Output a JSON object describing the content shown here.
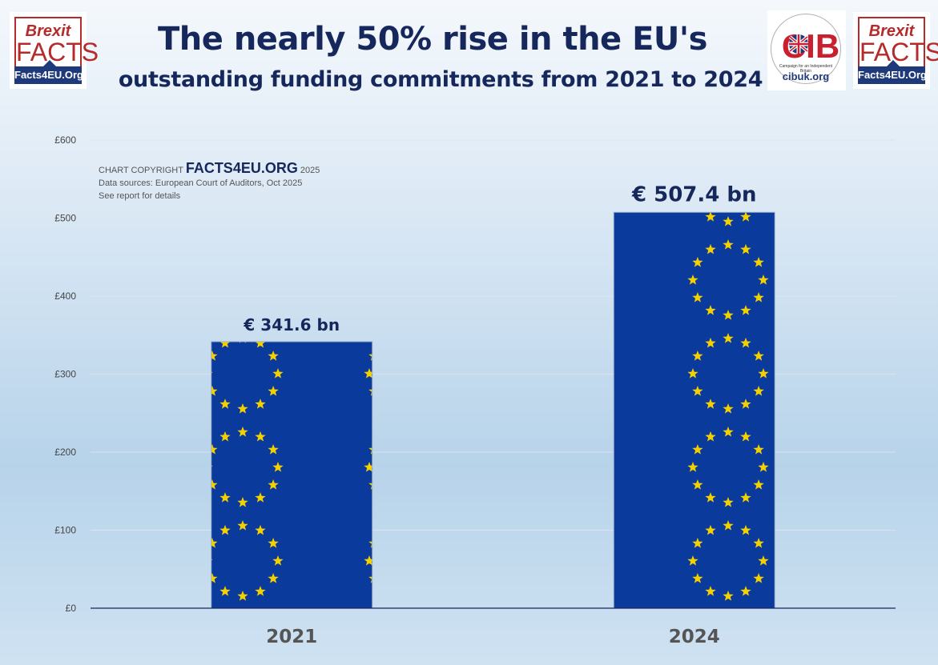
{
  "header": {
    "title_line1": "The nearly 50% rise in the EU's",
    "title_line2": "outstanding funding commitments from 2021 to 2024"
  },
  "logos": {
    "brexit_facts": {
      "line1": "Brexit",
      "line2": "FACTS",
      "url": "Facts4EU.Org"
    },
    "cib": {
      "letters": "CIB",
      "tagline": "Campaign for an Independent Britain",
      "url": "cibuk.org"
    }
  },
  "credit": {
    "prefix": "CHART COPYRIGHT",
    "brand": "FACTS4EU.ORG",
    "year": "2025",
    "source": "Data sources: European Court of Auditors, Oct 2025",
    "note": "See report for details"
  },
  "colors": {
    "bar": "#0a3a9c",
    "star": "#f5d000",
    "axis": "#16275c",
    "grid": "#dbe4ee",
    "title": "#16275c",
    "brand_red": "#b52a2a"
  },
  "chart_data": {
    "type": "bar",
    "categories": [
      "2021",
      "2024"
    ],
    "values": [
      341.6,
      507.4
    ],
    "data_labels": [
      "€ 341.6 bn",
      "€ 507.4 bn"
    ],
    "y_ticks": [
      "£0",
      "£100",
      "£200",
      "£300",
      "£400",
      "£500",
      "£600"
    ],
    "y_tick_values": [
      0,
      100,
      200,
      300,
      400,
      500,
      600
    ],
    "ylim": [
      0,
      600
    ],
    "grid": true,
    "bar_fill": "EU flag pattern (blue with circles of gold stars)"
  }
}
